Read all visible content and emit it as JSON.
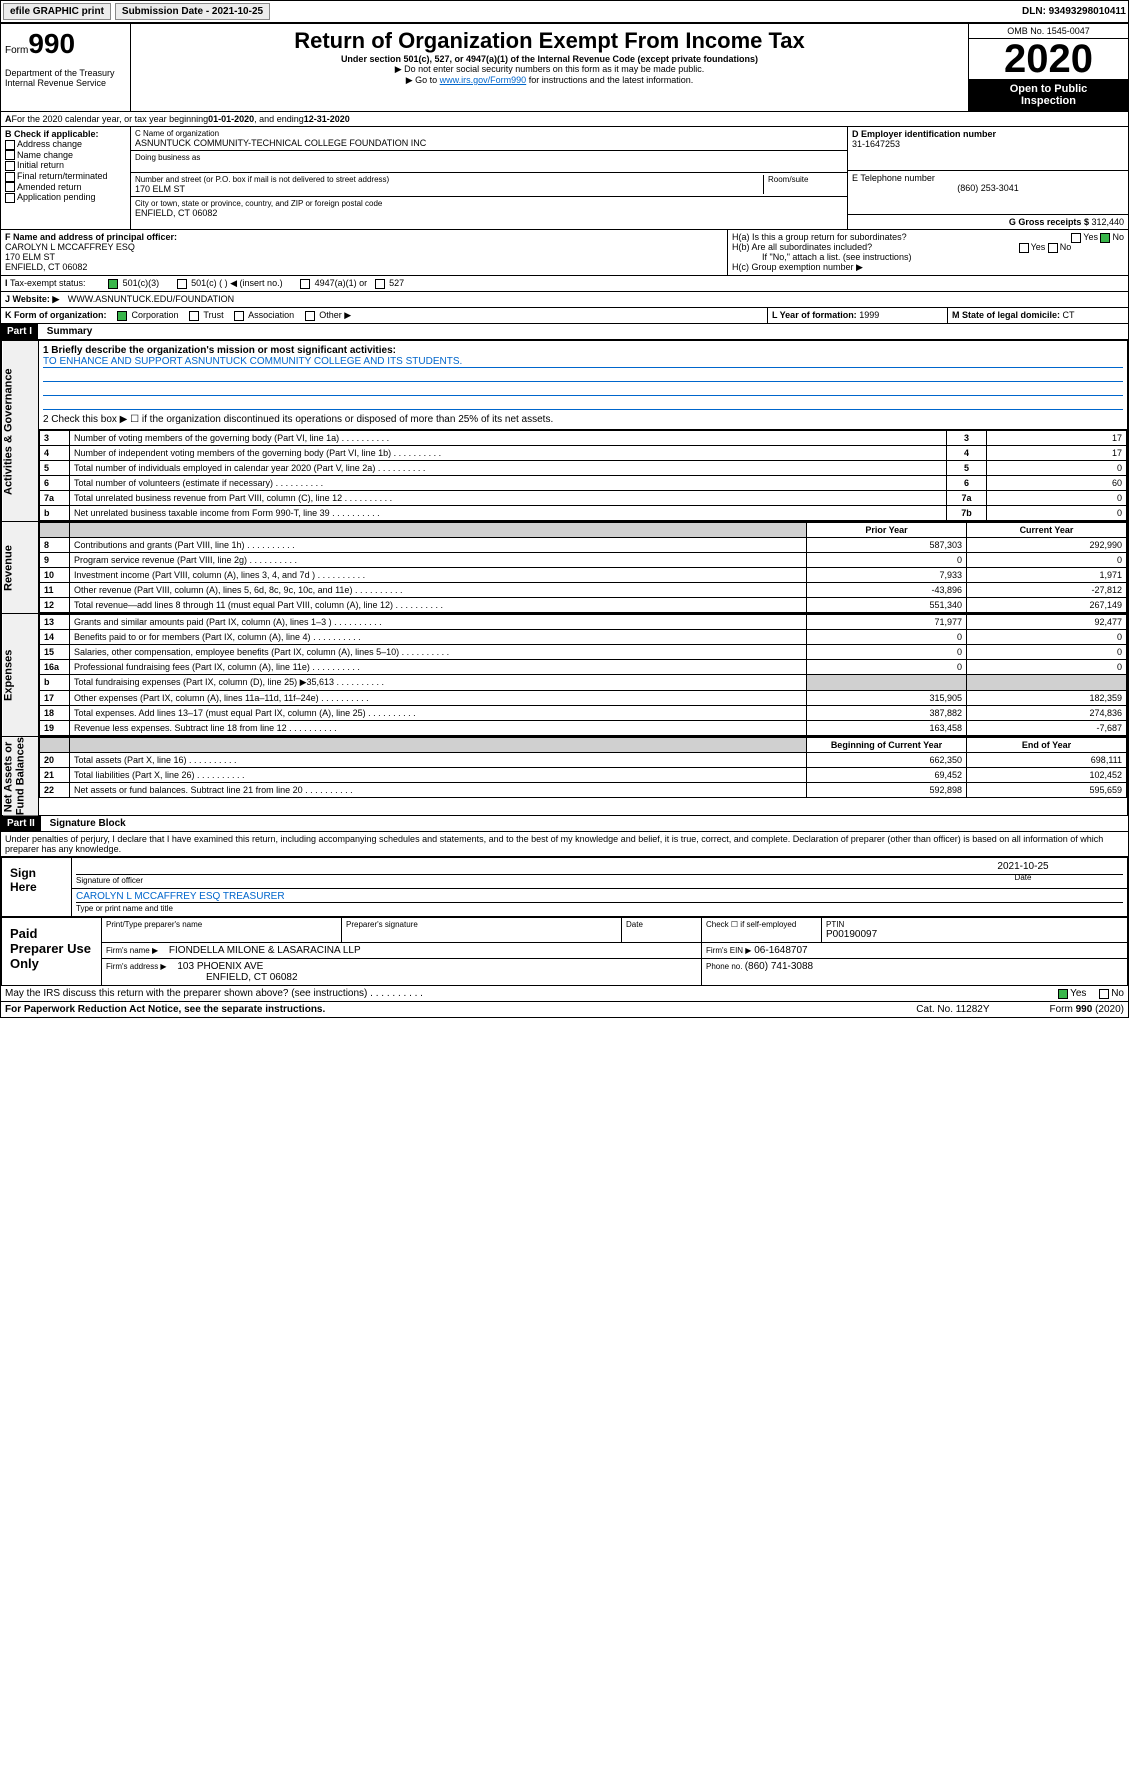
{
  "topbar": {
    "efile": "efile GRAPHIC print",
    "subdate_label": "Submission Date - 2021-10-25",
    "dln": "DLN: 93493298010411"
  },
  "header": {
    "form_word": "Form",
    "form_num": "990",
    "dept": "Department of the Treasury\nInternal Revenue Service",
    "title": "Return of Organization Exempt From Income Tax",
    "subtitle": "Under section 501(c), 527, or 4947(a)(1) of the Internal Revenue Code (except private foundations)",
    "note1": "▶ Do not enter social security numbers on this form as it may be made public.",
    "note2_pre": "▶ Go to ",
    "note2_link": "www.irs.gov/Form990",
    "note2_post": " for instructions and the latest information.",
    "omb": "OMB No. 1545-0047",
    "year": "2020",
    "open": "Open to Public\nInspection"
  },
  "periodA": {
    "text_pre": "For the 2020 calendar year, or tax year beginning ",
    "begin": "01-01-2020",
    "mid": " , and ending ",
    "end": "12-31-2020"
  },
  "boxB": {
    "label": "B Check if applicable:",
    "items": [
      "Address change",
      "Name change",
      "Initial return",
      "Final return/terminated",
      "Amended return",
      "Application pending"
    ]
  },
  "boxC": {
    "name_label": "C Name of organization",
    "name": "ASNUNTUCK COMMUNITY-TECHNICAL COLLEGE FOUNDATION INC",
    "dba_label": "Doing business as",
    "addr_label": "Number and street (or P.O. box if mail is not delivered to street address)",
    "room_label": "Room/suite",
    "addr": "170 ELM ST",
    "city_label": "City or town, state or province, country, and ZIP or foreign postal code",
    "city": "ENFIELD, CT  06082"
  },
  "boxD": {
    "label": "D Employer identification number",
    "val": "31-1647253"
  },
  "boxE": {
    "label": "E Telephone number",
    "val": "(860) 253-3041"
  },
  "boxG": {
    "label": "G Gross receipts $ ",
    "val": "312,440"
  },
  "boxF": {
    "label": "F  Name and address of principal officer:",
    "name": "CAROLYN L MCCAFFREY ESQ",
    "addr": "170 ELM ST",
    "city": "ENFIELD, CT  06082"
  },
  "boxH": {
    "a": "H(a)  Is this a group return for subordinates?",
    "b": "H(b)  Are all subordinates included?",
    "b_note": "If \"No,\" attach a list. (see instructions)",
    "c": "H(c)  Group exemption number ▶",
    "yes": "Yes",
    "no": "No"
  },
  "boxI": {
    "label": "Tax-exempt status:",
    "opts": [
      "501(c)(3)",
      "501(c) (  ) ◀ (insert no.)",
      "4947(a)(1) or",
      "527"
    ]
  },
  "boxJ": {
    "label": "Website: ▶",
    "val": "WWW.ASNUNTUCK.EDU/FOUNDATION"
  },
  "boxK": {
    "label": "K Form of organization:",
    "opts": [
      "Corporation",
      "Trust",
      "Association",
      "Other ▶"
    ]
  },
  "boxL": {
    "label": "L Year of formation: ",
    "val": "1999"
  },
  "boxM": {
    "label": "M State of legal domicile: ",
    "val": "CT"
  },
  "part1": {
    "hdr": "Part I",
    "title": "Summary",
    "q1_label": "1  Briefly describe the organization's mission or most significant activities:",
    "q1_val": "TO ENHANCE AND SUPPORT ASNUNTUCK COMMUNITY COLLEGE AND ITS STUDENTS.",
    "q2": "2   Check this box ▶ ☐  if the organization discontinued its operations or disposed of more than 25% of its net assets.",
    "lines_gov": [
      {
        "n": "3",
        "t": "Number of voting members of the governing body (Part VI, line 1a)",
        "box": "3",
        "v": "17"
      },
      {
        "n": "4",
        "t": "Number of independent voting members of the governing body (Part VI, line 1b)",
        "box": "4",
        "v": "17"
      },
      {
        "n": "5",
        "t": "Total number of individuals employed in calendar year 2020 (Part V, line 2a)",
        "box": "5",
        "v": "0"
      },
      {
        "n": "6",
        "t": "Total number of volunteers (estimate if necessary)",
        "box": "6",
        "v": "60"
      },
      {
        "n": "7a",
        "t": "Total unrelated business revenue from Part VIII, column (C), line 12",
        "box": "7a",
        "v": "0"
      },
      {
        "n": "b",
        "t": "Net unrelated business taxable income from Form 990-T, line 39",
        "box": "7b",
        "v": "0"
      }
    ],
    "col_prior": "Prior Year",
    "col_curr": "Current Year",
    "revenue": [
      {
        "n": "8",
        "t": "Contributions and grants (Part VIII, line 1h)",
        "p": "587,303",
        "c": "292,990"
      },
      {
        "n": "9",
        "t": "Program service revenue (Part VIII, line 2g)",
        "p": "0",
        "c": "0"
      },
      {
        "n": "10",
        "t": "Investment income (Part VIII, column (A), lines 3, 4, and 7d )",
        "p": "7,933",
        "c": "1,971"
      },
      {
        "n": "11",
        "t": "Other revenue (Part VIII, column (A), lines 5, 6d, 8c, 9c, 10c, and 11e)",
        "p": "-43,896",
        "c": "-27,812"
      },
      {
        "n": "12",
        "t": "Total revenue—add lines 8 through 11 (must equal Part VIII, column (A), line 12)",
        "p": "551,340",
        "c": "267,149"
      }
    ],
    "expenses": [
      {
        "n": "13",
        "t": "Grants and similar amounts paid (Part IX, column (A), lines 1–3 )",
        "p": "71,977",
        "c": "92,477"
      },
      {
        "n": "14",
        "t": "Benefits paid to or for members (Part IX, column (A), line 4)",
        "p": "0",
        "c": "0"
      },
      {
        "n": "15",
        "t": "Salaries, other compensation, employee benefits (Part IX, column (A), lines 5–10)",
        "p": "0",
        "c": "0"
      },
      {
        "n": "16a",
        "t": "Professional fundraising fees (Part IX, column (A), line 11e)",
        "p": "0",
        "c": "0"
      },
      {
        "n": "b",
        "t": "Total fundraising expenses (Part IX, column (D), line 25) ▶35,613",
        "p": "",
        "c": "",
        "gray": true
      },
      {
        "n": "17",
        "t": "Other expenses (Part IX, column (A), lines 11a–11d, 11f–24e)",
        "p": "315,905",
        "c": "182,359"
      },
      {
        "n": "18",
        "t": "Total expenses. Add lines 13–17 (must equal Part IX, column (A), line 25)",
        "p": "387,882",
        "c": "274,836"
      },
      {
        "n": "19",
        "t": "Revenue less expenses. Subtract line 18 from line 12",
        "p": "163,458",
        "c": "-7,687"
      }
    ],
    "col_begin": "Beginning of Current Year",
    "col_end": "End of Year",
    "netassets": [
      {
        "n": "20",
        "t": "Total assets (Part X, line 16)",
        "p": "662,350",
        "c": "698,111"
      },
      {
        "n": "21",
        "t": "Total liabilities (Part X, line 26)",
        "p": "69,452",
        "c": "102,452"
      },
      {
        "n": "22",
        "t": "Net assets or fund balances. Subtract line 21 from line 20",
        "p": "592,898",
        "c": "595,659"
      }
    ],
    "vlabels": {
      "gov": "Activities & Governance",
      "rev": "Revenue",
      "exp": "Expenses",
      "net": "Net Assets or\nFund Balances"
    }
  },
  "part2": {
    "hdr": "Part II",
    "title": "Signature Block",
    "perjury": "Under penalties of perjury, I declare that I have examined this return, including accompanying schedules and statements, and to the best of my knowledge and belief, it is true, correct, and complete. Declaration of preparer (other than officer) is based on all information of which preparer has any knowledge.",
    "sign_here": "Sign Here",
    "sig_officer": "Signature of officer",
    "sig_date": "2021-10-25",
    "sig_date_label": "Date",
    "officer_name": "CAROLYN L MCCAFFREY ESQ  TREASURER",
    "officer_name_label": "Type or print name and title",
    "paid": "Paid Preparer Use Only",
    "prep_name_label": "Print/Type preparer's name",
    "prep_sig_label": "Preparer's signature",
    "prep_date_label": "Date",
    "prep_check": "Check ☐ if self-employed",
    "ptin_label": "PTIN",
    "ptin": "P00190097",
    "firm_name_label": "Firm's name    ▶",
    "firm_name": "FIONDELLA MILONE & LASARACINA LLP",
    "firm_ein_label": "Firm's EIN ▶",
    "firm_ein": "06-1648707",
    "firm_addr_label": "Firm's address ▶",
    "firm_addr": "103 PHOENIX AVE",
    "firm_city": "ENFIELD, CT  06082",
    "firm_phone_label": "Phone no. ",
    "firm_phone": "(860) 741-3088",
    "discuss": "May the IRS discuss this return with the preparer shown above? (see instructions)",
    "yes": "Yes",
    "no": "No"
  },
  "footer": {
    "paperwork": "For Paperwork Reduction Act Notice, see the separate instructions.",
    "cat": "Cat. No. 11282Y",
    "form": "Form 990 (2020)"
  }
}
